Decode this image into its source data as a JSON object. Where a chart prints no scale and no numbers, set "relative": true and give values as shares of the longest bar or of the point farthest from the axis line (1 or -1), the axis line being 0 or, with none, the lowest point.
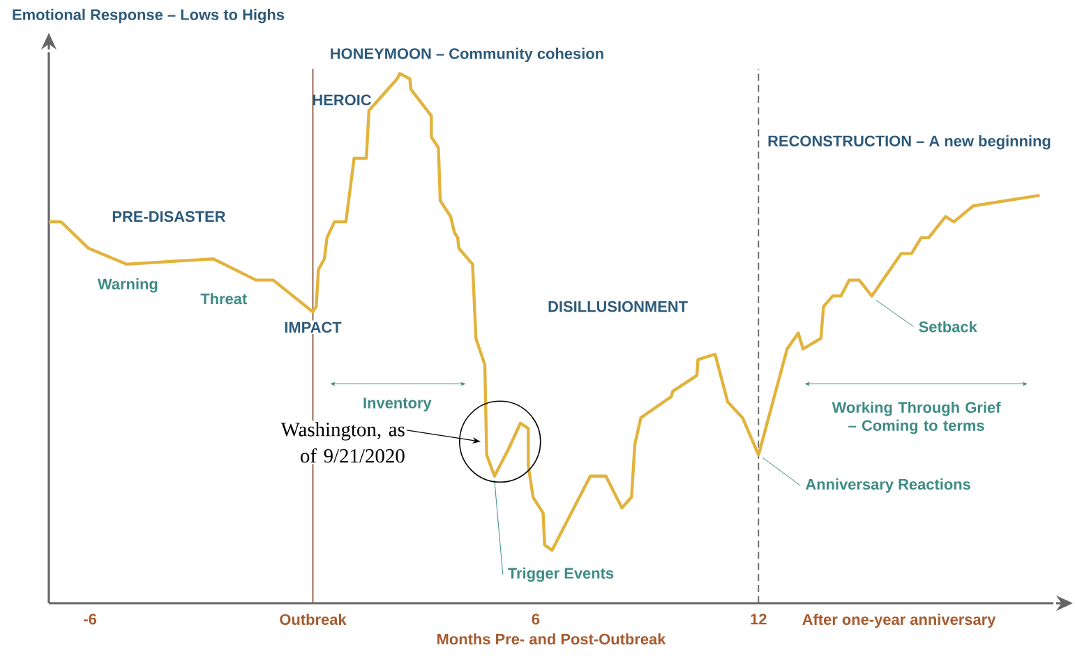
{
  "chart_data": {
    "type": "line",
    "relative": true,
    "color": "#e2b33c",
    "ylabel": "Emotional Response – Lows to Highs",
    "xlabel": "Months Pre- and Post-Outbreak",
    "xlim": [
      -7.11,
      19.94
    ],
    "xticks": [
      -6,
      {
        "value": 0,
        "label": "Outbreak"
      },
      6,
      12,
      {
        "value": 15.78,
        "label": "After one-year anniversary"
      }
    ],
    "x": [
      -7.11,
      -6.78,
      -6.04,
      -5.02,
      -2.68,
      -1.53,
      -1.07,
      0,
      0.09,
      0.15,
      0.31,
      0.38,
      0.58,
      0.89,
      1.11,
      1.44,
      1.51,
      2.27,
      2.34,
      2.61,
      2.64,
      3.19,
      3.19,
      3.38,
      3.43,
      3.71,
      3.81,
      3.9,
      3.93,
      4.3,
      4.39,
      4.63,
      4.68,
      4.89,
      5.26,
      5.59,
      5.8,
      5.8,
      5.93,
      6.2,
      6.24,
      6.44,
      7.47,
      7.89,
      8.32,
      8.58,
      8.67,
      8.83,
      9.65,
      9.69,
      10.34,
      10.37,
      10.83,
      11.17,
      11.57,
      12.0,
      12.77,
      13.07,
      13.2,
      13.68,
      13.75,
      14.0,
      14.22,
      14.44,
      14.71,
      15.05,
      15.84,
      16.12,
      16.38,
      16.58,
      17.04,
      17.26,
      17.78,
      19.57
    ],
    "values": [
      0.72,
      0.72,
      0.67,
      0.64,
      0.65,
      0.61,
      0.61,
      0.55,
      0.56,
      0.63,
      0.65,
      0.69,
      0.72,
      0.72,
      0.84,
      0.84,
      0.93,
      0.99,
      1,
      0.99,
      0.97,
      0.92,
      0.88,
      0.86,
      0.76,
      0.73,
      0.7,
      0.69,
      0.67,
      0.64,
      0.5,
      0.45,
      0.28,
      0.24,
      0.29,
      0.34,
      0.33,
      0.26,
      0.2,
      0.17,
      0.11,
      0.1,
      0.24,
      0.24,
      0.18,
      0.2,
      0.3,
      0.35,
      0.39,
      0.4,
      0.43,
      0.46,
      0.47,
      0.38,
      0.35,
      0.28,
      0.48,
      0.51,
      0.48,
      0.5,
      0.56,
      0.58,
      0.58,
      0.61,
      0.61,
      0.58,
      0.66,
      0.66,
      0.69,
      0.69,
      0.73,
      0.72,
      0.75,
      0.77
    ],
    "ref_lines": [
      {
        "axis": "x",
        "value": 0,
        "color": "#8b5a3c",
        "line_style": "solid"
      },
      {
        "axis": "x",
        "value": 12,
        "color": "#666666",
        "line_style": "dashed"
      }
    ],
    "annotations": [
      "PRE-DISASTER",
      "HEROIC",
      "HONEYMOON – Community cohesion",
      "DISILLUSIONMENT",
      "RECONSTRUCTION – A new beginning",
      "Warning",
      "Threat",
      "Inventory",
      "Working Through Grief – Coming to terms",
      {
        "text": "IMPACT",
        "x": 0,
        "y": 0.55
      },
      {
        "text": "Trigger Events",
        "x": 4.89,
        "y": 0.24
      },
      {
        "text": "Anniversary Reactions",
        "x": 12,
        "y": 0.28
      },
      {
        "text": "Setback",
        "x": 15.05,
        "y": 0.58
      },
      "Washington, as of 9/21/2020"
    ]
  }
}
